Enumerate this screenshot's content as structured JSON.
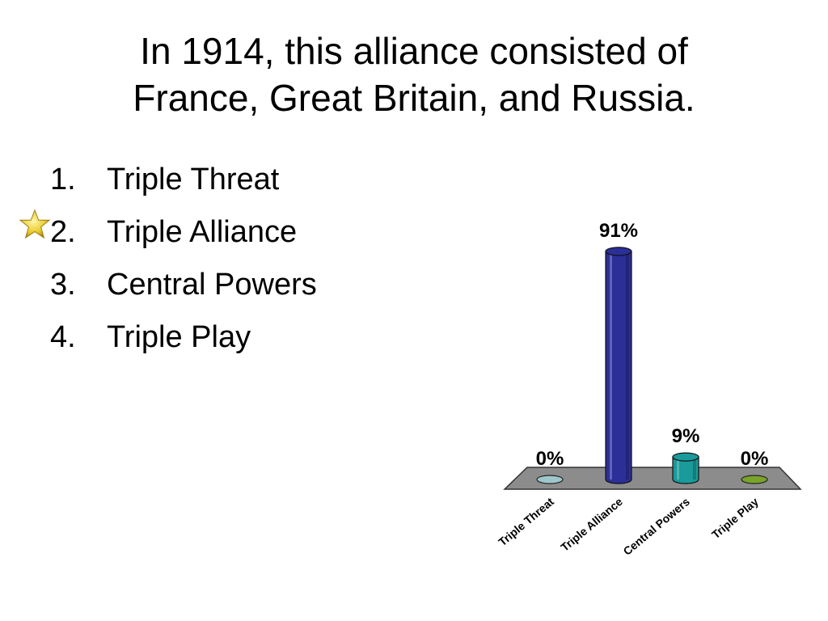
{
  "slide": {
    "title_line1": "In 1914, this alliance consisted of",
    "title_line2": "France, Great Britain, and Russia.",
    "answers": [
      {
        "num": "1.",
        "text": "Triple Threat"
      },
      {
        "num": "2.",
        "text": "Triple Alliance"
      },
      {
        "num": "3.",
        "text": "Central Powers"
      },
      {
        "num": "4.",
        "text": "Triple Play"
      }
    ],
    "correct_marker_icon": "star-icon"
  },
  "chart_data": {
    "type": "bar",
    "categories": [
      "Triple Threat",
      "Triple Alliance",
      "Central Powers",
      "Triple Play"
    ],
    "values": [
      0,
      91,
      9,
      0
    ],
    "data_labels": [
      "0%",
      "91%",
      "9%",
      "0%"
    ],
    "ylim": [
      0,
      100
    ],
    "grid": false,
    "colors": [
      "#9fc6cc",
      "#2b2f97",
      "#1a9a9a",
      "#7aa32a"
    ],
    "floor_color": "#8c8c8c"
  }
}
